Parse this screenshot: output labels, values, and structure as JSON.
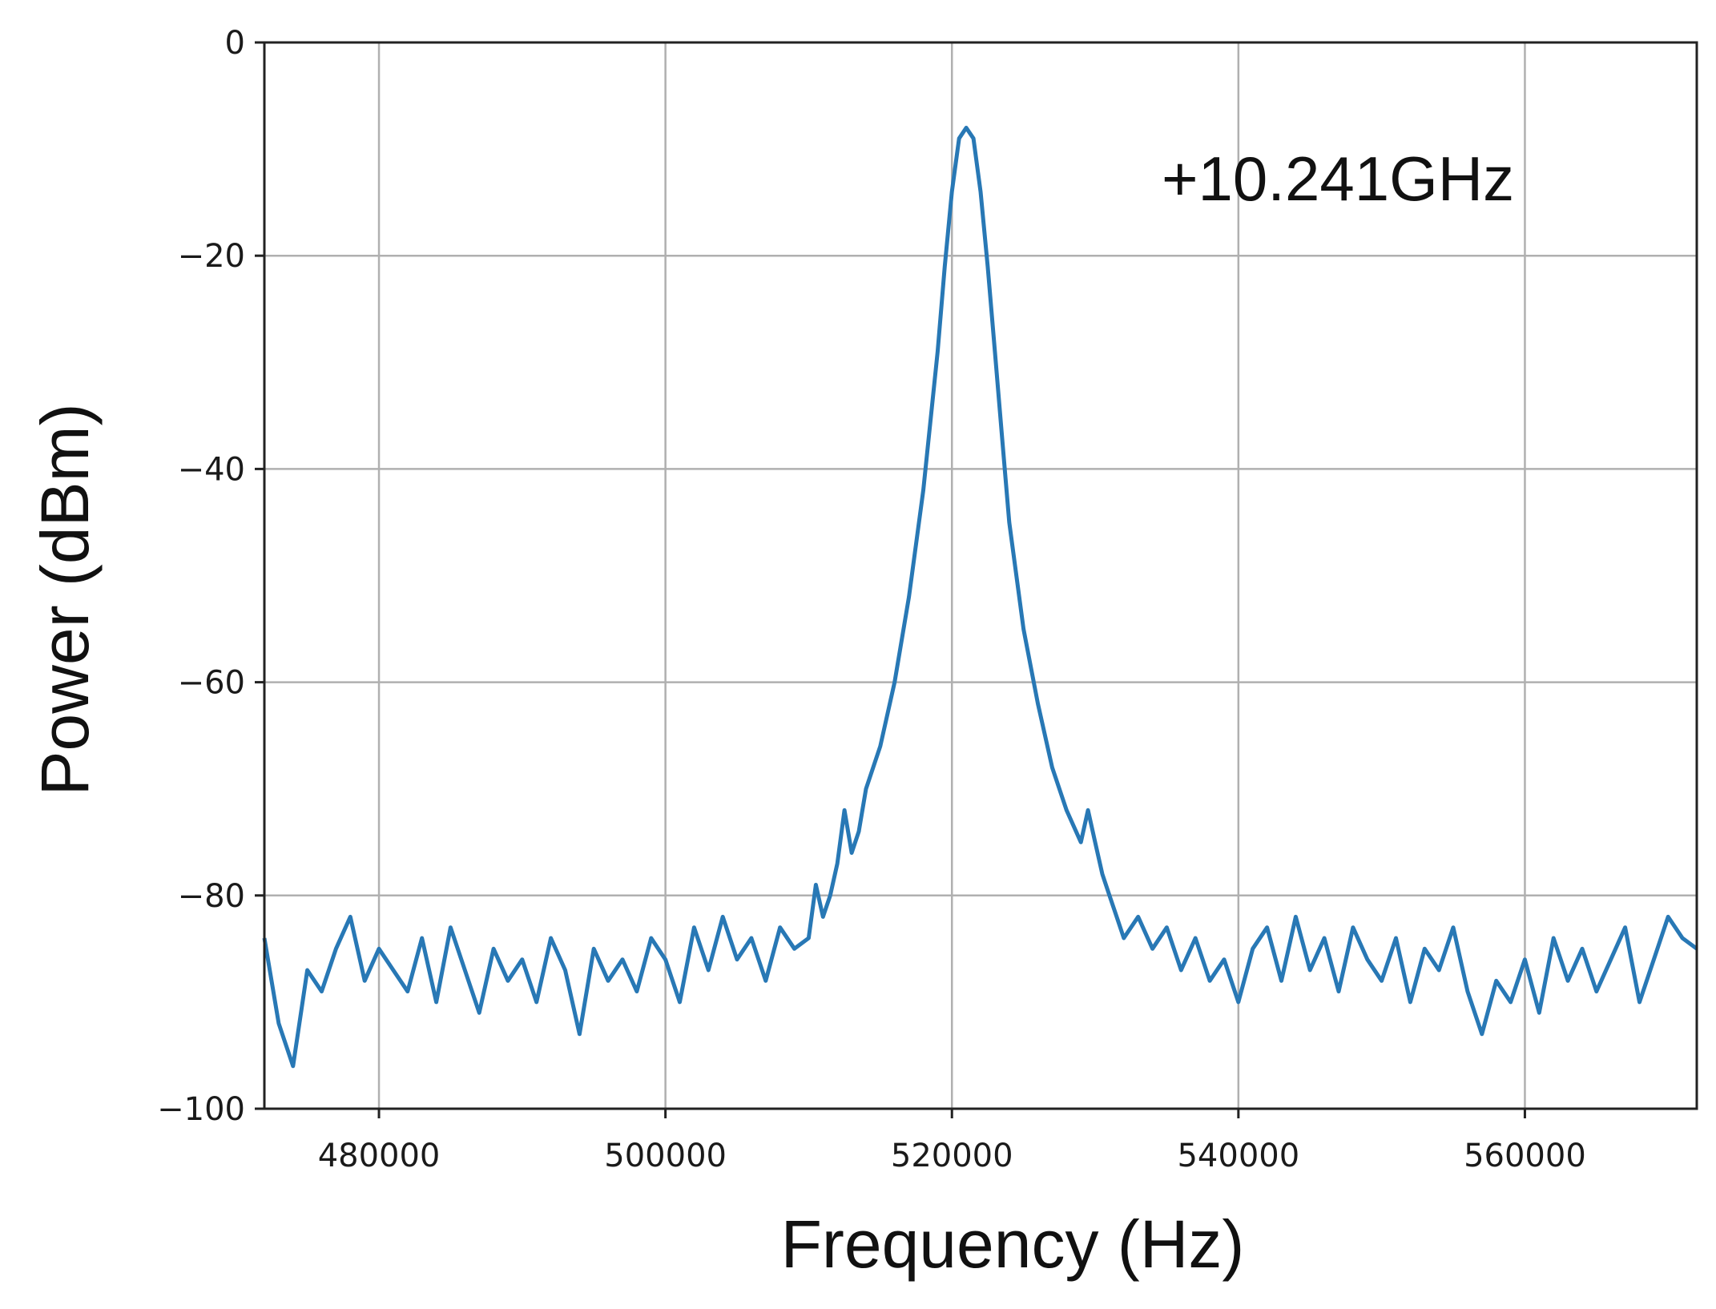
{
  "chart_data": {
    "type": "line",
    "title": "",
    "xlabel": "Frequency (Hz)",
    "ylabel": "Power (dBm)",
    "xlim": [
      472000,
      572000
    ],
    "ylim": [
      -100,
      0
    ],
    "x_ticks": [
      480000,
      500000,
      520000,
      540000,
      560000
    ],
    "x_tick_labels": [
      "480000",
      "500000",
      "520000",
      "540000",
      "560000"
    ],
    "y_ticks": [
      0,
      -20,
      -40,
      -60,
      -80,
      -100
    ],
    "y_tick_labels": [
      "0",
      "−20",
      "−40",
      "−60",
      "−80",
      "−100"
    ],
    "grid": true,
    "annotation": "+10.241GHz",
    "series_color": "#2878b5",
    "series": [
      {
        "x": [
          472000,
          473000,
          474000,
          475000,
          476000,
          477000,
          478000,
          479000,
          480000,
          481000,
          482000,
          483000,
          484000,
          485000,
          486000,
          487000,
          488000,
          489000,
          490000,
          491000,
          492000,
          493000,
          494000,
          495000,
          496000,
          497000,
          498000,
          499000,
          500000,
          501000,
          502000,
          503000,
          504000,
          505000,
          506000,
          507000,
          508000,
          509000,
          510000,
          510500,
          511000,
          511500,
          512000,
          512500,
          513000,
          513500,
          514000,
          515000,
          516000,
          517000,
          518000,
          519000,
          519500,
          520000,
          520500,
          521000,
          521500,
          522000,
          522500,
          523000,
          523500,
          524000,
          525000,
          526000,
          527000,
          528000,
          529000,
          529500,
          530000,
          530500,
          531000,
          531500,
          532000,
          533000,
          534000,
          535000,
          536000,
          537000,
          538000,
          539000,
          540000,
          541000,
          542000,
          543000,
          544000,
          545000,
          546000,
          547000,
          548000,
          549000,
          550000,
          551000,
          552000,
          553000,
          554000,
          555000,
          556000,
          557000,
          558000,
          559000,
          560000,
          561000,
          562000,
          563000,
          564000,
          565000,
          566000,
          567000,
          568000,
          569000,
          570000,
          571000,
          572000
        ],
        "y": [
          -84,
          -92,
          -96,
          -87,
          -89,
          -85,
          -82,
          -88,
          -85,
          -87,
          -89,
          -84,
          -90,
          -83,
          -87,
          -91,
          -85,
          -88,
          -86,
          -90,
          -84,
          -87,
          -93,
          -85,
          -88,
          -86,
          -89,
          -84,
          -86,
          -90,
          -83,
          -87,
          -82,
          -86,
          -84,
          -88,
          -83,
          -85,
          -84,
          -79,
          -82,
          -80,
          -77,
          -72,
          -76,
          -74,
          -70,
          -66,
          -60,
          -52,
          -42,
          -29,
          -21,
          -14,
          -9,
          -8,
          -9,
          -14,
          -21,
          -29,
          -37,
          -45,
          -55,
          -62,
          -68,
          -72,
          -75,
          -72,
          -75,
          -78,
          -80,
          -82,
          -84,
          -82,
          -85,
          -83,
          -87,
          -84,
          -88,
          -86,
          -90,
          -85,
          -83,
          -88,
          -82,
          -87,
          -84,
          -89,
          -83,
          -86,
          -88,
          -84,
          -90,
          -85,
          -87,
          -83,
          -89,
          -93,
          -88,
          -90,
          -86,
          -91,
          -84,
          -88,
          -85,
          -89,
          -86,
          -83,
          -90,
          -86,
          -82,
          -84,
          -85
        ]
      }
    ]
  }
}
